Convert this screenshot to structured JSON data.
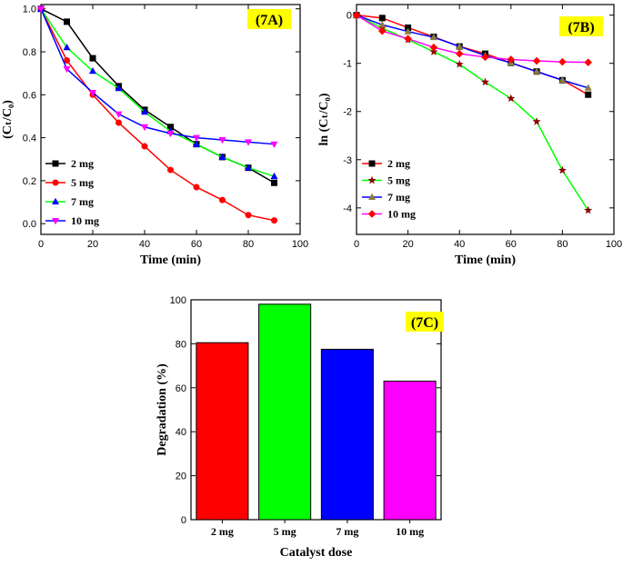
{
  "chart_data": [
    {
      "id": "7A",
      "type": "line",
      "panel_label": "(7A)",
      "xlabel": "Time (min)",
      "ylabel": "(Cₜ/C₀)",
      "xlim": [
        0,
        100
      ],
      "ylim": [
        -0.05,
        1.02
      ],
      "xticks": [
        0,
        20,
        40,
        60,
        80,
        100
      ],
      "yticks": [
        0.0,
        0.2,
        0.4,
        0.6,
        0.8,
        1.0
      ],
      "ytick_labels": [
        "0.0",
        "0.2",
        "0.4",
        "0.6",
        "0.8",
        "1.0"
      ],
      "x": [
        0,
        10,
        20,
        30,
        40,
        50,
        60,
        70,
        80,
        90
      ],
      "series": [
        {
          "name": "2 mg",
          "color": "#000000",
          "marker": "square",
          "values": [
            1.0,
            0.94,
            0.77,
            0.64,
            0.53,
            0.45,
            0.37,
            0.31,
            0.26,
            0.19
          ]
        },
        {
          "name": "5 mg",
          "color": "#ff0000",
          "marker": "circle",
          "values": [
            1.0,
            0.76,
            0.6,
            0.47,
            0.36,
            0.25,
            0.17,
            0.11,
            0.04,
            0.015
          ]
        },
        {
          "name": "7 mg",
          "color": "#0000ff",
          "marker": "triangle-up",
          "line_color": "#00ff00",
          "values": [
            1.0,
            0.82,
            0.71,
            0.63,
            0.52,
            0.43,
            0.37,
            0.31,
            0.26,
            0.22
          ]
        },
        {
          "name": "10 mg",
          "color": "#ff00ff",
          "marker": "triangle-down",
          "line_color": "#0000ff",
          "values": [
            1.0,
            0.72,
            0.61,
            0.51,
            0.45,
            0.42,
            0.4,
            0.39,
            0.38,
            0.37
          ]
        }
      ],
      "legend": "bottom-left"
    },
    {
      "id": "7B",
      "type": "line",
      "panel_label": "(7B)",
      "xlabel": "Time (min)",
      "ylabel": "ln (Cₜ/C₀)",
      "xlim": [
        0,
        100
      ],
      "ylim": [
        -4.55,
        0.22
      ],
      "xticks": [
        0,
        20,
        40,
        60,
        80,
        100
      ],
      "yticks": [
        0,
        -1,
        -2,
        -3,
        -4
      ],
      "ytick_labels": [
        "0",
        "-1",
        "-2",
        "-3",
        "-4"
      ],
      "x": [
        0,
        10,
        20,
        30,
        40,
        50,
        60,
        70,
        80,
        90
      ],
      "series": [
        {
          "name": "2 mg",
          "color": "#000000",
          "marker": "square",
          "line_color": "#ff0000",
          "values": [
            0,
            -0.06,
            -0.26,
            -0.45,
            -0.65,
            -0.8,
            -0.99,
            -1.17,
            -1.35,
            -1.65
          ]
        },
        {
          "name": "5 mg",
          "color": "#8b0000",
          "marker": "star",
          "line_color": "#00ff00",
          "values": [
            0,
            -0.27,
            -0.51,
            -0.76,
            -1.02,
            -1.39,
            -1.73,
            -2.21,
            -3.22,
            -4.05
          ]
        },
        {
          "name": "7 mg",
          "color": "#8b7d3a",
          "marker": "triangle-up",
          "line_color": "#0000ff",
          "values": [
            0,
            -0.2,
            -0.34,
            -0.46,
            -0.65,
            -0.84,
            -0.99,
            -1.17,
            -1.35,
            -1.51
          ]
        },
        {
          "name": "10 mg",
          "color": "#ff0000",
          "marker": "diamond",
          "line_color": "#ff00ff",
          "values": [
            0,
            -0.33,
            -0.49,
            -0.67,
            -0.8,
            -0.87,
            -0.92,
            -0.95,
            -0.97,
            -0.98
          ]
        }
      ],
      "legend": "bottom-left"
    },
    {
      "id": "7C",
      "type": "bar",
      "panel_label": "(7C)",
      "xlabel": "Catalyst dose",
      "ylabel": "Degradation (%)",
      "ylim": [
        0,
        100
      ],
      "yticks": [
        0,
        20,
        40,
        60,
        80,
        100
      ],
      "ytick_labels": [
        "0",
        "20",
        "40",
        "60",
        "80",
        "100"
      ],
      "categories": [
        "2 mg",
        "5 mg",
        "7 mg",
        "10 mg"
      ],
      "values": [
        80.5,
        98,
        77.5,
        63
      ],
      "colors": [
        "#ff0000",
        "#00ff00",
        "#0000ff",
        "#ff00ff"
      ]
    }
  ]
}
